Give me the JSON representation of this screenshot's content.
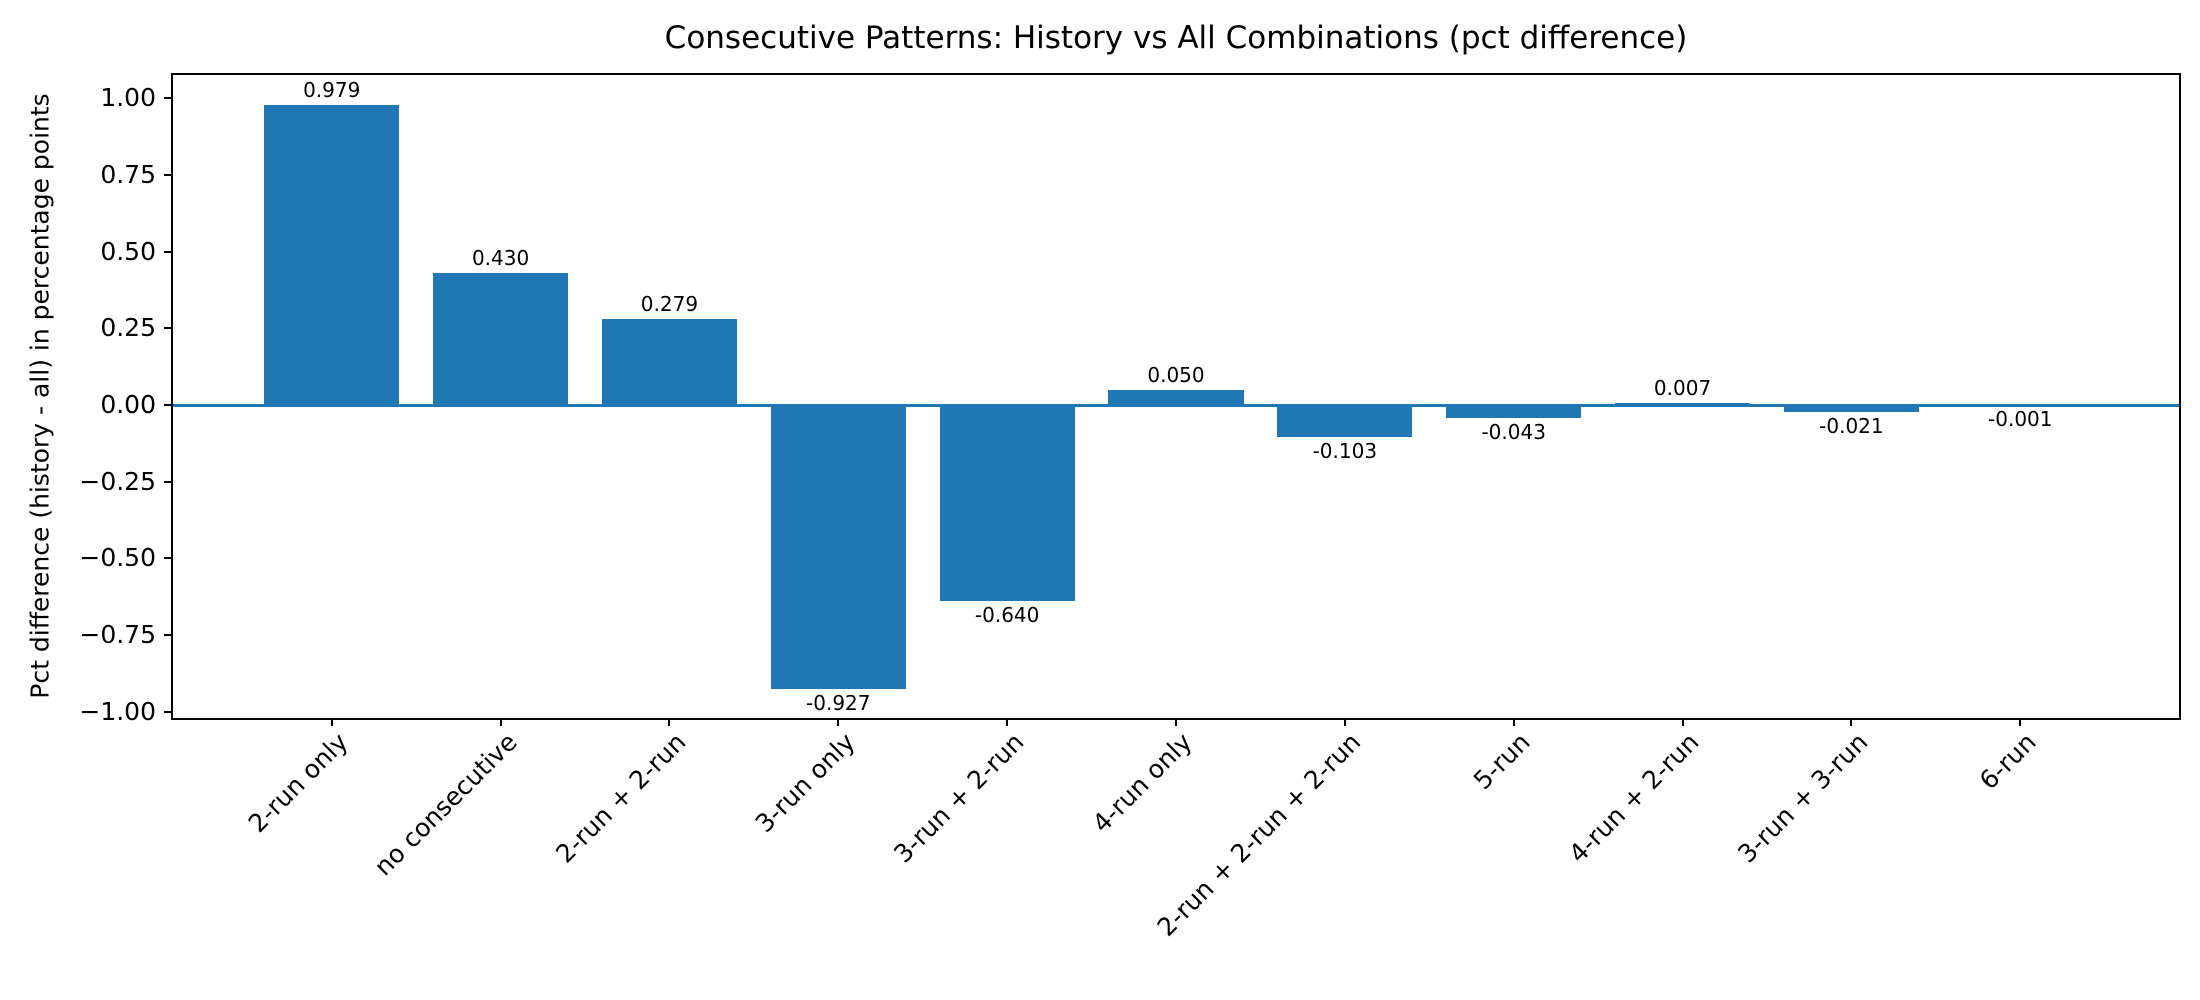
{
  "figure": {
    "background": "#ffffff",
    "text_color": "#000000",
    "spine_color": "#000000"
  },
  "chart_data": {
    "type": "bar",
    "title": "Consecutive Patterns: History vs All Combinations (pct difference)",
    "xlabel": "",
    "ylabel": "Pct difference (history - all) in percentage points",
    "categories": [
      "2-run only",
      "no consecutive",
      "2-run + 2-run",
      "3-run only",
      "3-run + 2-run",
      "4-run only",
      "2-run + 2-run + 2-run",
      "5-run",
      "4-run + 2-run",
      "3-run + 3-run",
      "6-run"
    ],
    "values": [
      0.979,
      0.43,
      0.279,
      -0.927,
      -0.64,
      0.05,
      -0.103,
      -0.043,
      0.007,
      -0.021,
      -0.001
    ],
    "value_labels": [
      "0.979",
      "0.430",
      "0.279",
      "-0.927",
      "-0.640",
      "0.050",
      "-0.103",
      "-0.043",
      "0.007",
      "-0.021",
      "-0.001"
    ],
    "yticks": [
      1.0,
      0.75,
      0.5,
      0.25,
      0.0,
      -0.25,
      -0.5,
      -0.75,
      -1.0
    ],
    "ytick_labels": [
      "1.00",
      "0.75",
      "0.50",
      "0.25",
      "0.00",
      "−0.25",
      "−0.50",
      "−0.75",
      "−1.00"
    ],
    "ylim": [
      -1.02,
      1.076
    ],
    "grid": false,
    "legend": null,
    "bar_color": "#1f77b4",
    "zero_line_color": "#1f77b4"
  }
}
